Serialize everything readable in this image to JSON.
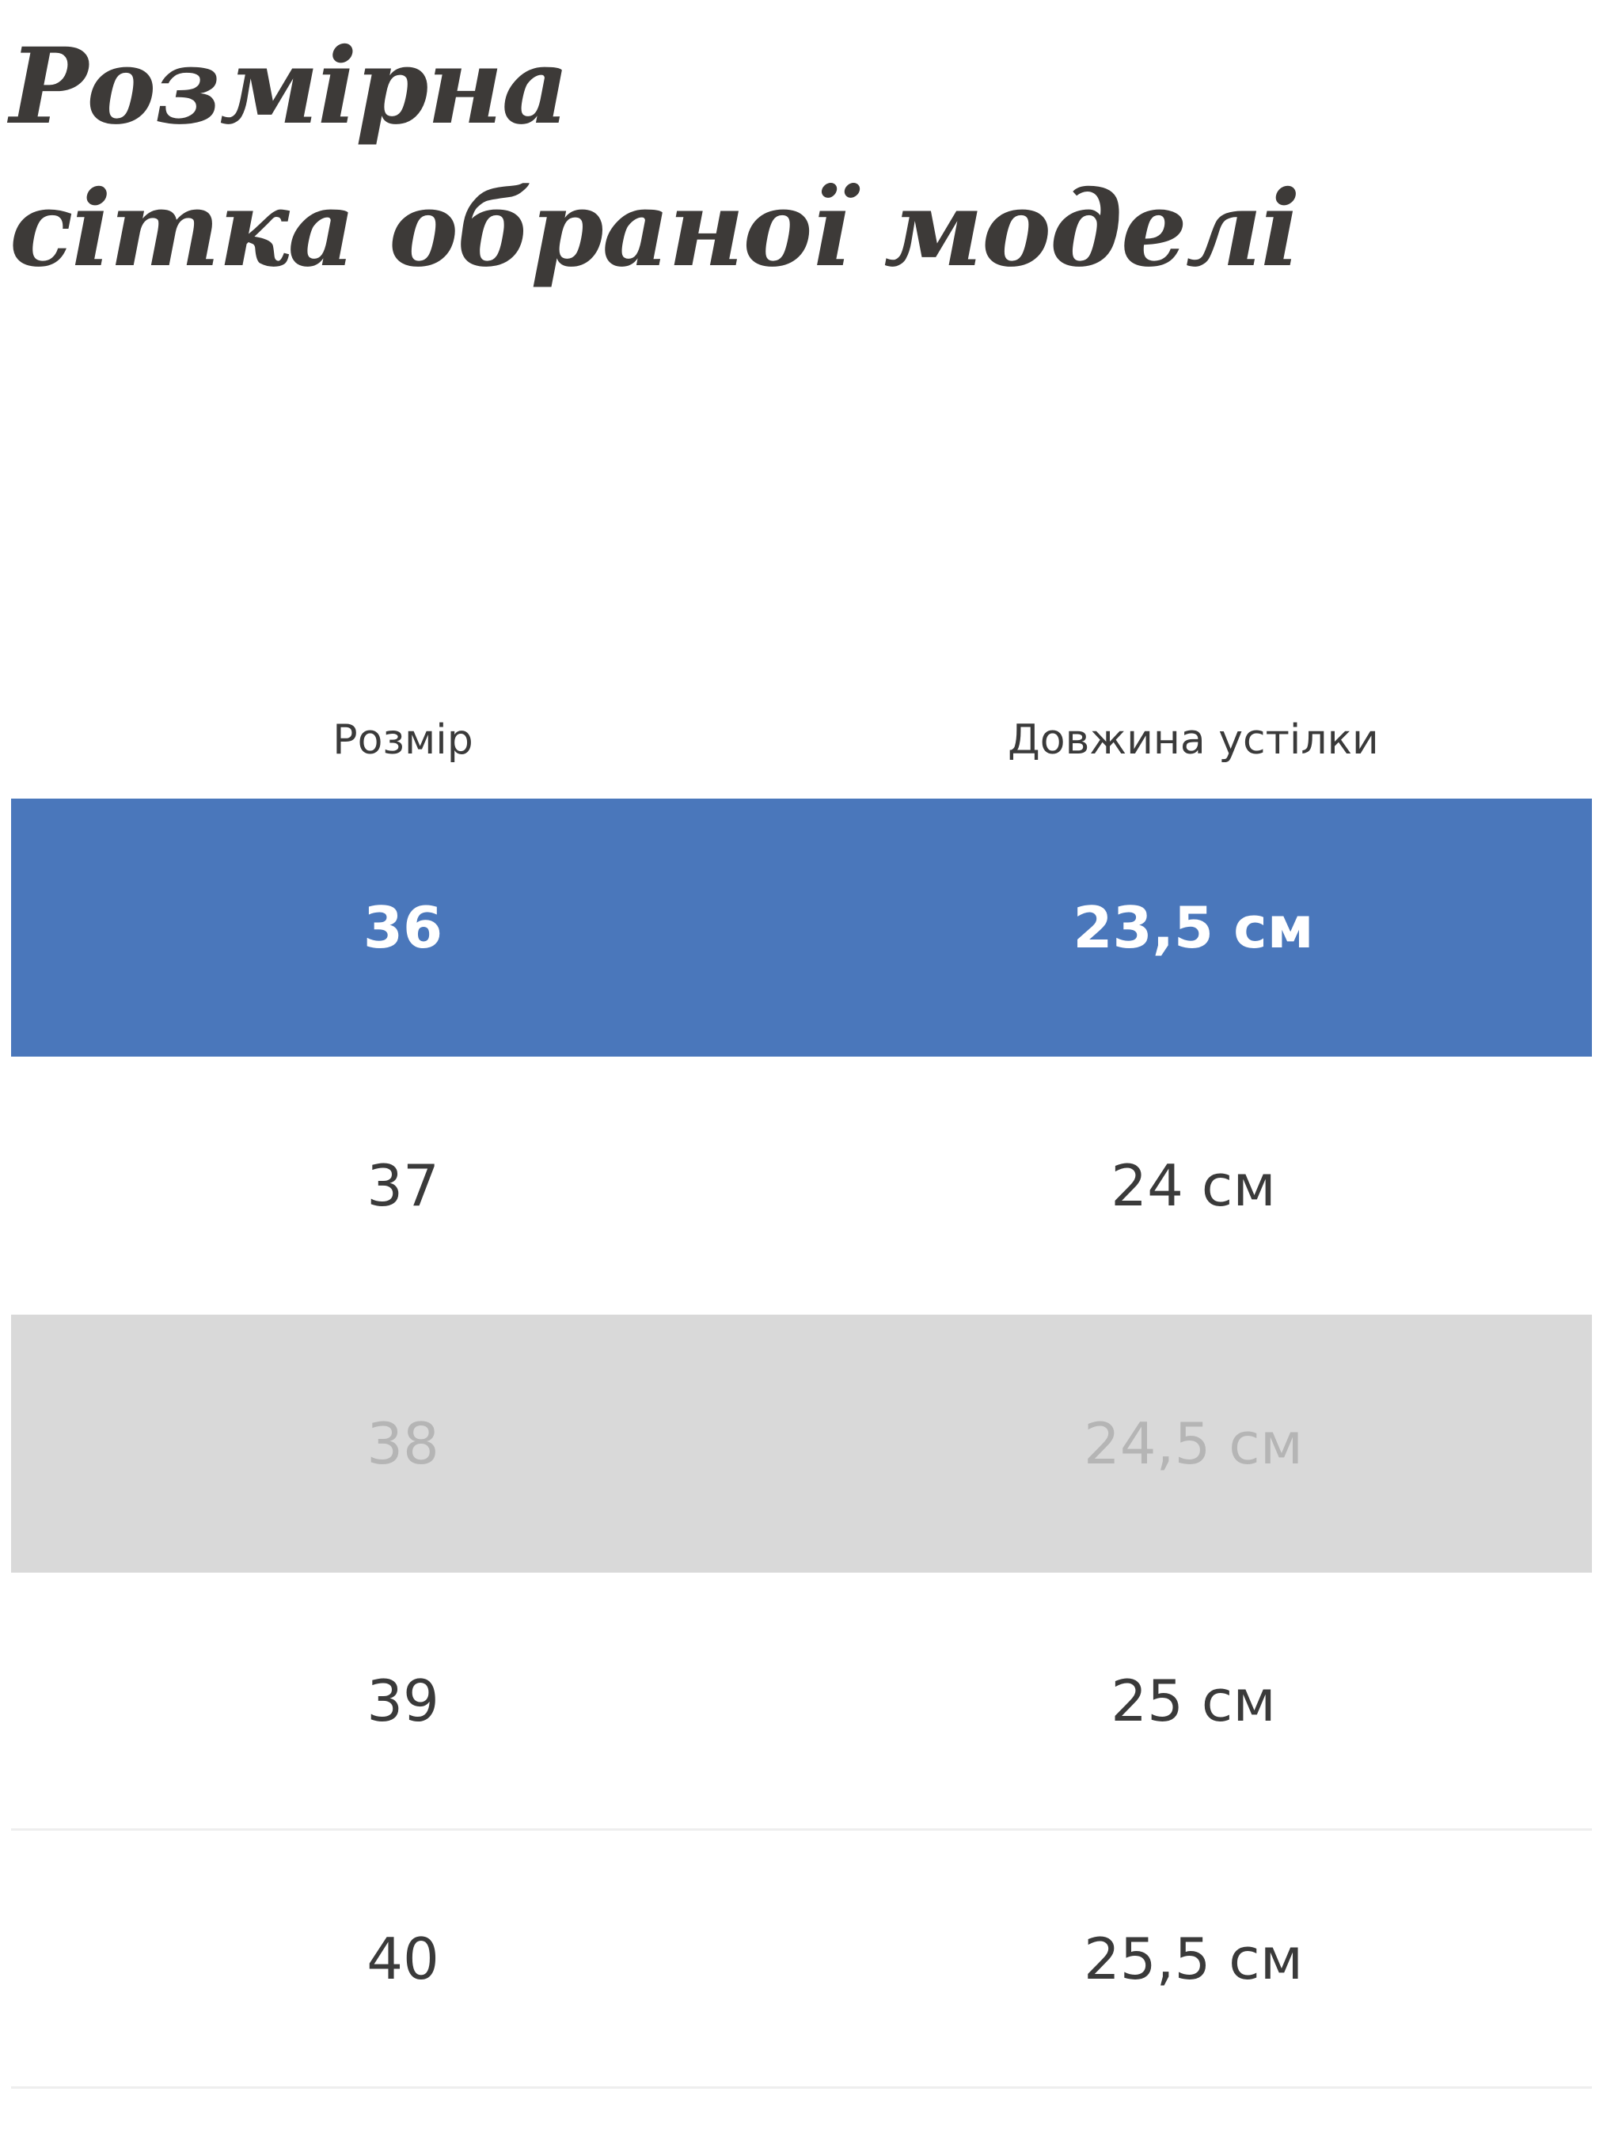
{
  "title": {
    "line1": "Розмірна",
    "line2": "сітка обраної моделі"
  },
  "table": {
    "headers": [
      "Розмір",
      "Довжина устілки"
    ],
    "rows": [
      {
        "size": "36",
        "length": "23,5 см",
        "state": "selected"
      },
      {
        "size": "37",
        "length": "24 см",
        "state": "available"
      },
      {
        "size": "38",
        "length": "24,5 см",
        "state": "unavailable"
      },
      {
        "size": "39",
        "length": "25 см",
        "state": "available"
      },
      {
        "size": "40",
        "length": "25,5 см",
        "state": "available"
      }
    ]
  },
  "colors": {
    "selected": "#4a77bb",
    "unavailable": "#d9d9d9",
    "unavailable_text": "#b5b5b5"
  }
}
